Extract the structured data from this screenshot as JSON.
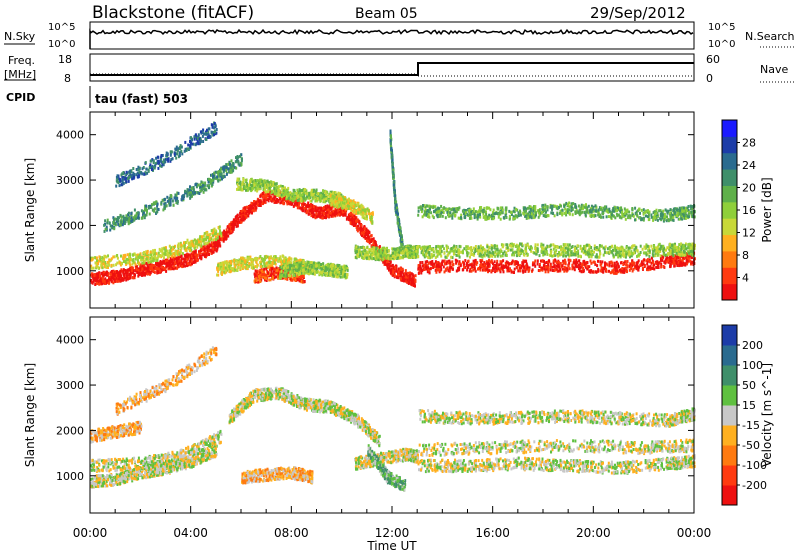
{
  "header": {
    "title": "Blackstone (fitACF)",
    "beam": "Beam 05",
    "date": "29/Sep/2012"
  },
  "status_panel": {
    "nsky_label": "N.Sky",
    "nsky_ticks": [
      "10^5",
      "10^0"
    ],
    "nsearch_label": "N.Search",
    "nsearch_ticks": [
      "10^5",
      "10^0"
    ],
    "freq_label": "Freq.",
    "freq_unit": "[MHz]",
    "freq_ticks": [
      "18",
      "8"
    ],
    "nave_label": "Nave",
    "nave_ticks": [
      "60",
      "0"
    ],
    "cpid_label": "CPID",
    "cpid_text": "tau (fast) 503"
  },
  "chart_data": [
    {
      "type": "heatmap",
      "name": "power",
      "ylabel": "Slant Range [km]",
      "ylim": [
        180,
        4500
      ],
      "yticks": [
        1000,
        2000,
        3000,
        4000
      ],
      "xlim": [
        0,
        24
      ],
      "xticks": [
        "00:00",
        "04:00",
        "08:00",
        "12:00",
        "16:00",
        "20:00",
        "00:00"
      ],
      "colorbar": {
        "label": "Power [dB]",
        "ticks": [
          "4",
          "8",
          "12",
          "16",
          "20",
          "24",
          "28"
        ],
        "colors": [
          "#1a1aff",
          "#1c3ca8",
          "#2a6b8f",
          "#3f8f6a",
          "#5fb04a",
          "#8fcf3a",
          "#c8d838",
          "#ffb020",
          "#ff7a10",
          "#ff3a10",
          "#ee1010"
        ]
      },
      "bands": [
        {
          "t": [
            0,
            1,
            2,
            3,
            4,
            5,
            6,
            7,
            8,
            9,
            10,
            11,
            12,
            12.9
          ],
          "r": [
            850,
            900,
            1050,
            1150,
            1300,
            1600,
            2250,
            2700,
            2600,
            2300,
            2400,
            1800,
            1050,
            800
          ],
          "level": 10
        },
        {
          "t": [
            0,
            2,
            3.5,
            5.2
          ],
          "r": [
            1200,
            1300,
            1500,
            1900
          ],
          "level": 6
        },
        {
          "t": [
            0.5,
            2.5,
            4.5,
            6
          ],
          "r": [
            2000,
            2400,
            2900,
            3500
          ],
          "level": 3
        },
        {
          "t": [
            1,
            3,
            5
          ],
          "r": [
            3000,
            3500,
            4200
          ],
          "level": 2
        },
        {
          "t": [
            5.8,
            7,
            8,
            9,
            10
          ],
          "r": [
            2950,
            2900,
            2700,
            2700,
            2600
          ],
          "level": 5
        },
        {
          "t": [
            5,
            6,
            7.5,
            8.7
          ],
          "r": [
            1050,
            1200,
            1250,
            1100
          ],
          "level": 6
        },
        {
          "t": [
            6.5,
            7.5,
            8.5
          ],
          "r": [
            900,
            1000,
            900
          ],
          "level": 9
        },
        {
          "t": [
            7.5,
            8.5,
            9.5,
            10.2
          ],
          "r": [
            1000,
            1100,
            1050,
            1000
          ],
          "level": 5
        },
        {
          "t": [
            9.5,
            10.3,
            11.2
          ],
          "r": [
            2600,
            2500,
            2200
          ],
          "level": 6
        },
        {
          "t": [
            13,
            15,
            17,
            19,
            21,
            23,
            24
          ],
          "r": [
            1100,
            1150,
            1120,
            1150,
            1100,
            1250,
            1300
          ],
          "level": 10
        },
        {
          "t": [
            13,
            15,
            17,
            19,
            21,
            23,
            24
          ],
          "r": [
            1450,
            1450,
            1500,
            1480,
            1450,
            1500,
            1500
          ],
          "level": 5
        },
        {
          "t": [
            13,
            15,
            17,
            19,
            21,
            23,
            24
          ],
          "r": [
            2350,
            2300,
            2300,
            2400,
            2300,
            2250,
            2350
          ],
          "level": 4
        },
        {
          "t": [
            11.9,
            12.1,
            12.4
          ],
          "r": [
            4000,
            2500,
            1500
          ],
          "level": 3
        },
        {
          "t": [
            10.5,
            11.5,
            12.5,
            13
          ],
          "r": [
            1450,
            1400,
            1450,
            1450
          ],
          "level": 5
        }
      ]
    },
    {
      "type": "heatmap",
      "name": "velocity",
      "ylabel": "Slant Range [km]",
      "ylim": [
        180,
        4500
      ],
      "yticks": [
        1000,
        2000,
        3000,
        4000
      ],
      "xlim": [
        0,
        24
      ],
      "xticks": [
        "00:00",
        "04:00",
        "08:00",
        "12:00",
        "16:00",
        "20:00",
        "00:00"
      ],
      "xlabel": "Time UT",
      "colorbar": {
        "label": "Velocity [m s^-1]",
        "ticks": [
          "200",
          "100",
          "50",
          "15",
          "-15",
          "-50",
          "-100",
          "-200"
        ],
        "colors": [
          "#1c3ca8",
          "#2a6b8f",
          "#3f8f6a",
          "#5fc040",
          "#c8c8c8",
          "#ffb020",
          "#ff7a10",
          "#ff3a10",
          "#ee1010"
        ]
      },
      "bands": [
        {
          "t": [
            0,
            1,
            2,
            3,
            4,
            5
          ],
          "r": [
            900,
            950,
            1100,
            1200,
            1350,
            1600
          ],
          "level": 4
        },
        {
          "t": [
            0,
            2,
            3.5,
            5.2
          ],
          "r": [
            1250,
            1300,
            1450,
            1900
          ],
          "level": 4
        },
        {
          "t": [
            0,
            1,
            2
          ],
          "r": [
            1900,
            2000,
            2100
          ],
          "level": 5
        },
        {
          "t": [
            1,
            3,
            5
          ],
          "r": [
            2500,
            3000,
            3800
          ],
          "level": 5
        },
        {
          "t": [
            5.5,
            6.5,
            7.5,
            8.5,
            9.5,
            10.5,
            11.5
          ],
          "r": [
            2300,
            2800,
            2850,
            2600,
            2550,
            2300,
            1800
          ],
          "level": 4
        },
        {
          "t": [
            6,
            7,
            8,
            8.8
          ],
          "r": [
            1000,
            1050,
            1100,
            1000
          ],
          "level": 5
        },
        {
          "t": [
            10.5,
            11.5,
            12.5,
            13
          ],
          "r": [
            1300,
            1400,
            1500,
            1450
          ],
          "level": 4
        },
        {
          "t": [
            11,
            11.8,
            12.5
          ],
          "r": [
            1600,
            1000,
            800
          ],
          "level": 3
        },
        {
          "t": [
            13,
            15,
            17,
            19,
            21,
            23,
            24
          ],
          "r": [
            1250,
            1250,
            1300,
            1250,
            1200,
            1300,
            1350
          ],
          "level": 4
        },
        {
          "t": [
            13,
            15,
            17,
            19,
            21,
            23,
            24
          ],
          "r": [
            2350,
            2300,
            2300,
            2350,
            2300,
            2250,
            2400
          ],
          "level": 4
        },
        {
          "t": [
            13,
            16,
            19,
            22,
            24
          ],
          "r": [
            1600,
            1650,
            1700,
            1650,
            1700
          ],
          "level": 4
        }
      ]
    }
  ]
}
